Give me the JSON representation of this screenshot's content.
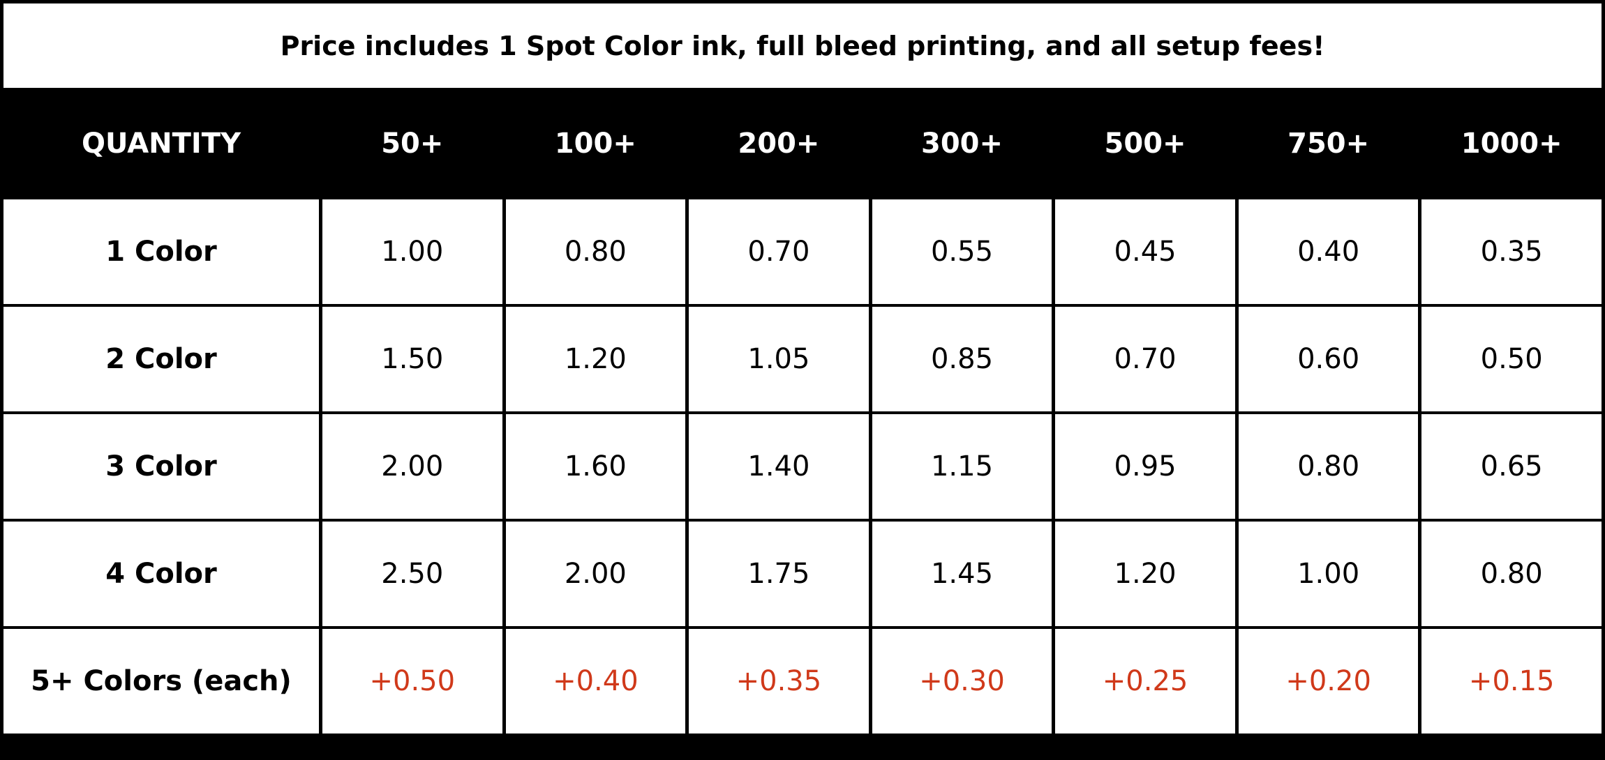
{
  "header": {
    "title": "Price includes 1 Spot Color ink, full bleed printing, and all setup fees!"
  },
  "table": {
    "columns": [
      "QUANTITY",
      "50+",
      "100+",
      "200+",
      "300+",
      "500+",
      "750+",
      "1000+"
    ],
    "rows": [
      [
        "1 Color",
        "1.00",
        "0.80",
        "0.70",
        "0.55",
        "0.45",
        "0.40",
        "0.35"
      ],
      [
        "2 Color",
        "1.50",
        "1.20",
        "1.05",
        "0.85",
        "0.70",
        "0.60",
        "0.50"
      ],
      [
        "3 Color",
        "2.00",
        "1.60",
        "1.40",
        "1.15",
        "0.95",
        "0.80",
        "0.65"
      ],
      [
        "4 Color",
        "2.50",
        "2.00",
        "1.75",
        "1.45",
        "1.20",
        "1.00",
        "0.80"
      ],
      [
        "5+ Colors (each)",
        "+0.50",
        "+0.40",
        "+0.35",
        "+0.30",
        "+0.25",
        "+0.20",
        "+0.15"
      ]
    ]
  }
}
